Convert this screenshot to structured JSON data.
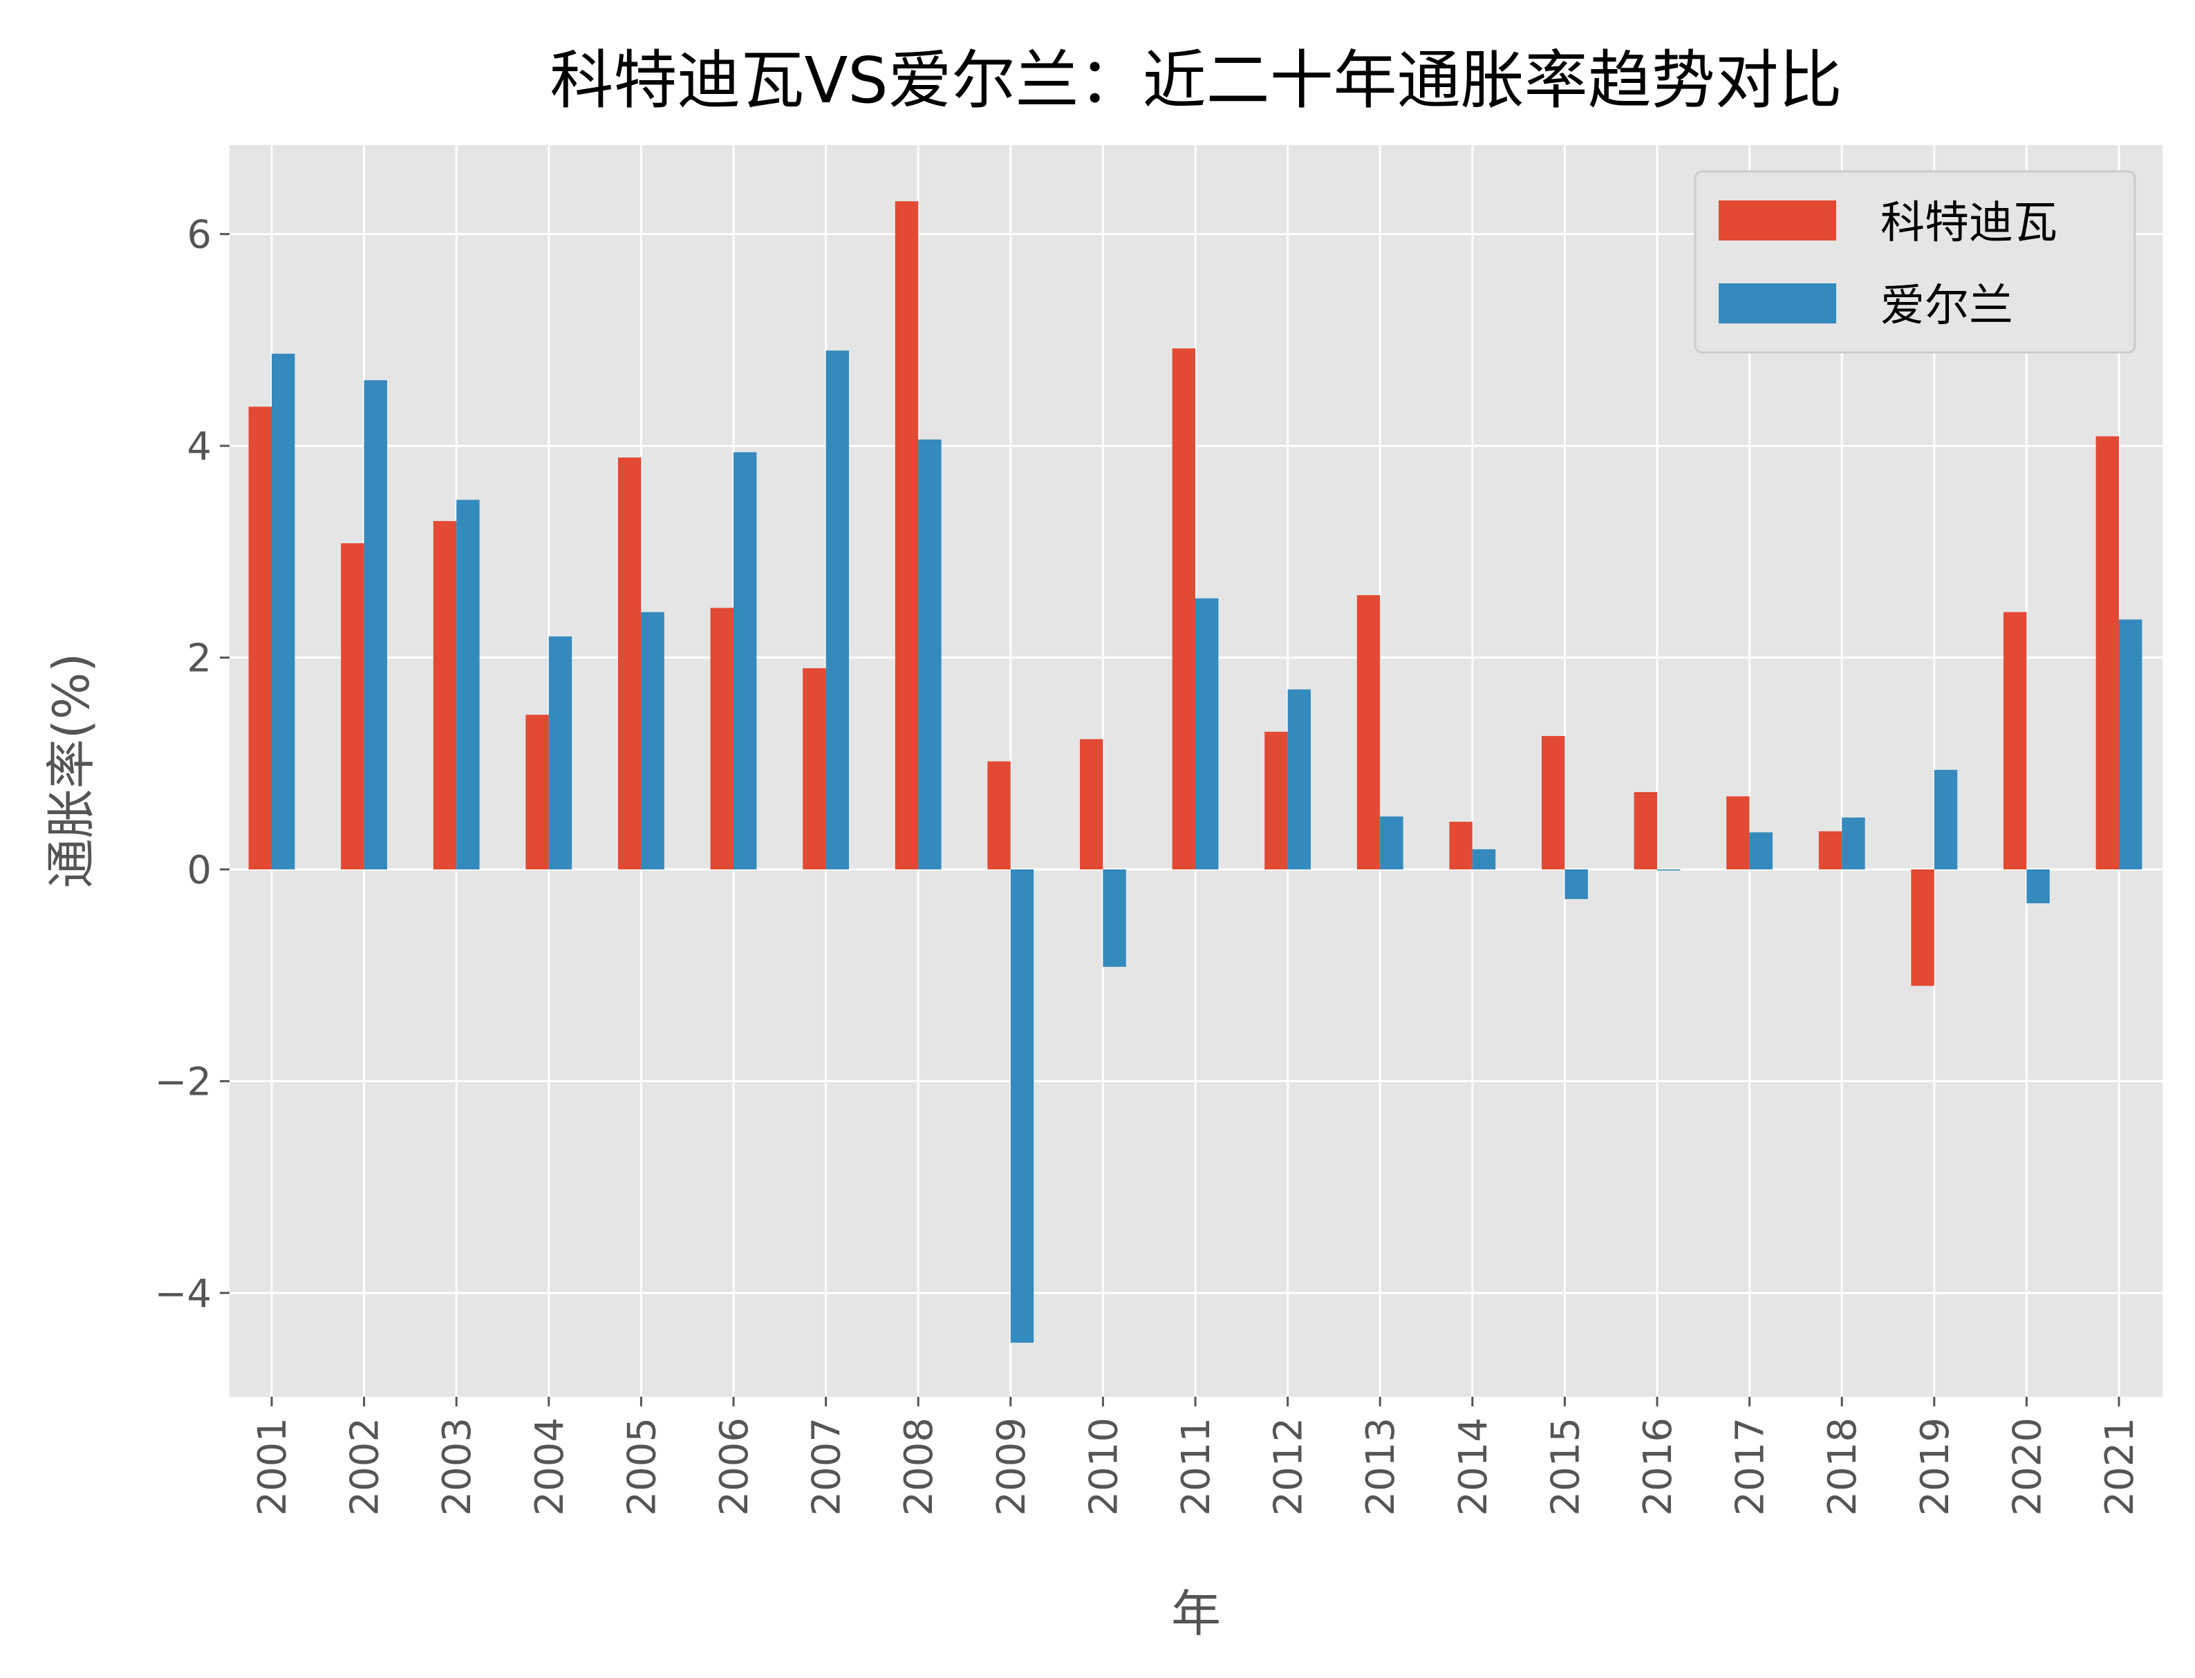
{
  "chart_data": {
    "type": "bar",
    "title": "科特迪瓦VS爱尔兰：近二十年通胀率趋势对比",
    "xlabel": "年",
    "ylabel": "通胀率(%)",
    "categories": [
      "2001",
      "2002",
      "2003",
      "2004",
      "2005",
      "2006",
      "2007",
      "2008",
      "2009",
      "2010",
      "2011",
      "2012",
      "2013",
      "2014",
      "2015",
      "2016",
      "2017",
      "2018",
      "2019",
      "2020",
      "2021"
    ],
    "series": [
      {
        "name": "科特迪瓦",
        "color": "#E24A33",
        "values": [
          4.37,
          3.08,
          3.29,
          1.46,
          3.89,
          2.47,
          1.9,
          6.31,
          1.02,
          1.23,
          4.92,
          1.3,
          2.59,
          0.45,
          1.26,
          0.73,
          0.69,
          0.36,
          -1.1,
          2.43,
          4.09
        ]
      },
      {
        "name": "爱尔兰",
        "color": "#348ABD",
        "values": [
          4.87,
          4.62,
          3.49,
          2.2,
          2.43,
          3.94,
          4.9,
          4.06,
          -4.47,
          -0.92,
          2.56,
          1.7,
          0.5,
          0.19,
          -0.28,
          -0.01,
          0.35,
          0.49,
          0.94,
          -0.32,
          2.36
        ]
      }
    ],
    "yticks": [
      -4,
      -2,
      0,
      2,
      4,
      6
    ],
    "ytick_labels": [
      "−4",
      "−2",
      "0",
      "2",
      "4",
      "6"
    ],
    "ylim": [
      -4.98,
      6.84
    ],
    "grid": true,
    "legend": "top-right",
    "background": "#E5E5E5"
  }
}
